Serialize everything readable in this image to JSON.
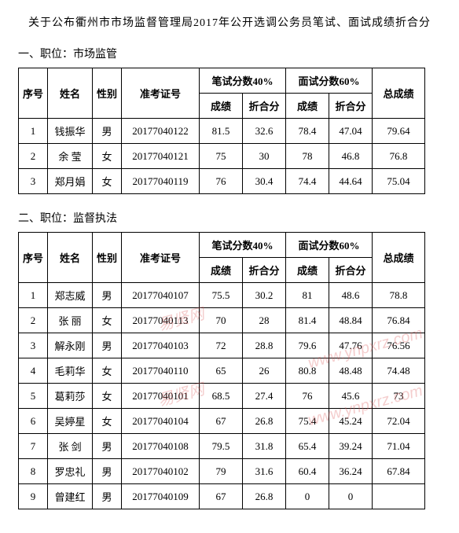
{
  "title": "关于公布衢州市市场监督管理局2017年公开选调公务员笔试、面试成绩折合分",
  "sections": [
    {
      "heading": "一、职位：市场监管",
      "header_group1": "笔试分数40%",
      "header_group2": "面试分数60%",
      "col_idx": "序号",
      "col_name": "姓名",
      "col_gender": "性别",
      "col_exam": "准考证号",
      "col_s1": "成绩",
      "col_s2": "折合分",
      "col_s3": "成绩",
      "col_s4": "折合分",
      "col_total": "总成绩",
      "rows": [
        {
          "idx": "1",
          "name": "钱振华",
          "gender": "男",
          "exam": "20177040122",
          "s1": "81.5",
          "s2": "32.6",
          "s3": "78.4",
          "s4": "47.04",
          "total": "79.64"
        },
        {
          "idx": "2",
          "name": "余  莹",
          "gender": "女",
          "exam": "20177040121",
          "s1": "75",
          "s2": "30",
          "s3": "78",
          "s4": "46.8",
          "total": "76.8"
        },
        {
          "idx": "3",
          "name": "郑月娟",
          "gender": "女",
          "exam": "20177040119",
          "s1": "76",
          "s2": "30.4",
          "s3": "74.4",
          "s4": "44.64",
          "total": "75.04"
        }
      ]
    },
    {
      "heading": "二、职位：监督执法",
      "header_group1": "笔试分数40%",
      "header_group2": "面试分数60%",
      "col_idx": "序号",
      "col_name": "姓名",
      "col_gender": "性别",
      "col_exam": "准考证号",
      "col_s1": "成绩",
      "col_s2": "折合分",
      "col_s3": "成绩",
      "col_s4": "折合分",
      "col_total": "总成绩",
      "rows": [
        {
          "idx": "1",
          "name": "郑志威",
          "gender": "男",
          "exam": "20177040107",
          "s1": "75.5",
          "s2": "30.2",
          "s3": "81",
          "s4": "48.6",
          "total": "78.8"
        },
        {
          "idx": "2",
          "name": "张  丽",
          "gender": "女",
          "exam": "20177040113",
          "s1": "70",
          "s2": "28",
          "s3": "81.4",
          "s4": "48.84",
          "total": "76.84"
        },
        {
          "idx": "3",
          "name": "解永刚",
          "gender": "男",
          "exam": "20177040103",
          "s1": "72",
          "s2": "28.8",
          "s3": "79.6",
          "s4": "47.76",
          "total": "76.56"
        },
        {
          "idx": "4",
          "name": "毛莉华",
          "gender": "女",
          "exam": "20177040110",
          "s1": "65",
          "s2": "26",
          "s3": "80.8",
          "s4": "48.48",
          "total": "74.48"
        },
        {
          "idx": "5",
          "name": "葛莉莎",
          "gender": "女",
          "exam": "20177040101",
          "s1": "68.5",
          "s2": "27.4",
          "s3": "76",
          "s4": "45.6",
          "total": "73"
        },
        {
          "idx": "6",
          "name": "吴婷星",
          "gender": "女",
          "exam": "20177040104",
          "s1": "67",
          "s2": "26.8",
          "s3": "75.4",
          "s4": "45.24",
          "total": "72.04"
        },
        {
          "idx": "7",
          "name": "张  剑",
          "gender": "男",
          "exam": "20177040108",
          "s1": "79.5",
          "s2": "31.8",
          "s3": "65.4",
          "s4": "39.24",
          "total": "71.04"
        },
        {
          "idx": "8",
          "name": "罗忠礼",
          "gender": "男",
          "exam": "20177040102",
          "s1": "79",
          "s2": "31.6",
          "s3": "60.4",
          "s4": "36.24",
          "total": "67.84"
        },
        {
          "idx": "9",
          "name": "曾建红",
          "gender": "男",
          "exam": "20177040109",
          "s1": "67",
          "s2": "26.8",
          "s3": "0",
          "s4": "0",
          "total": ""
        }
      ]
    }
  ],
  "watermark_a": "易贤网",
  "watermark_b": "www.ynpxrz.com"
}
